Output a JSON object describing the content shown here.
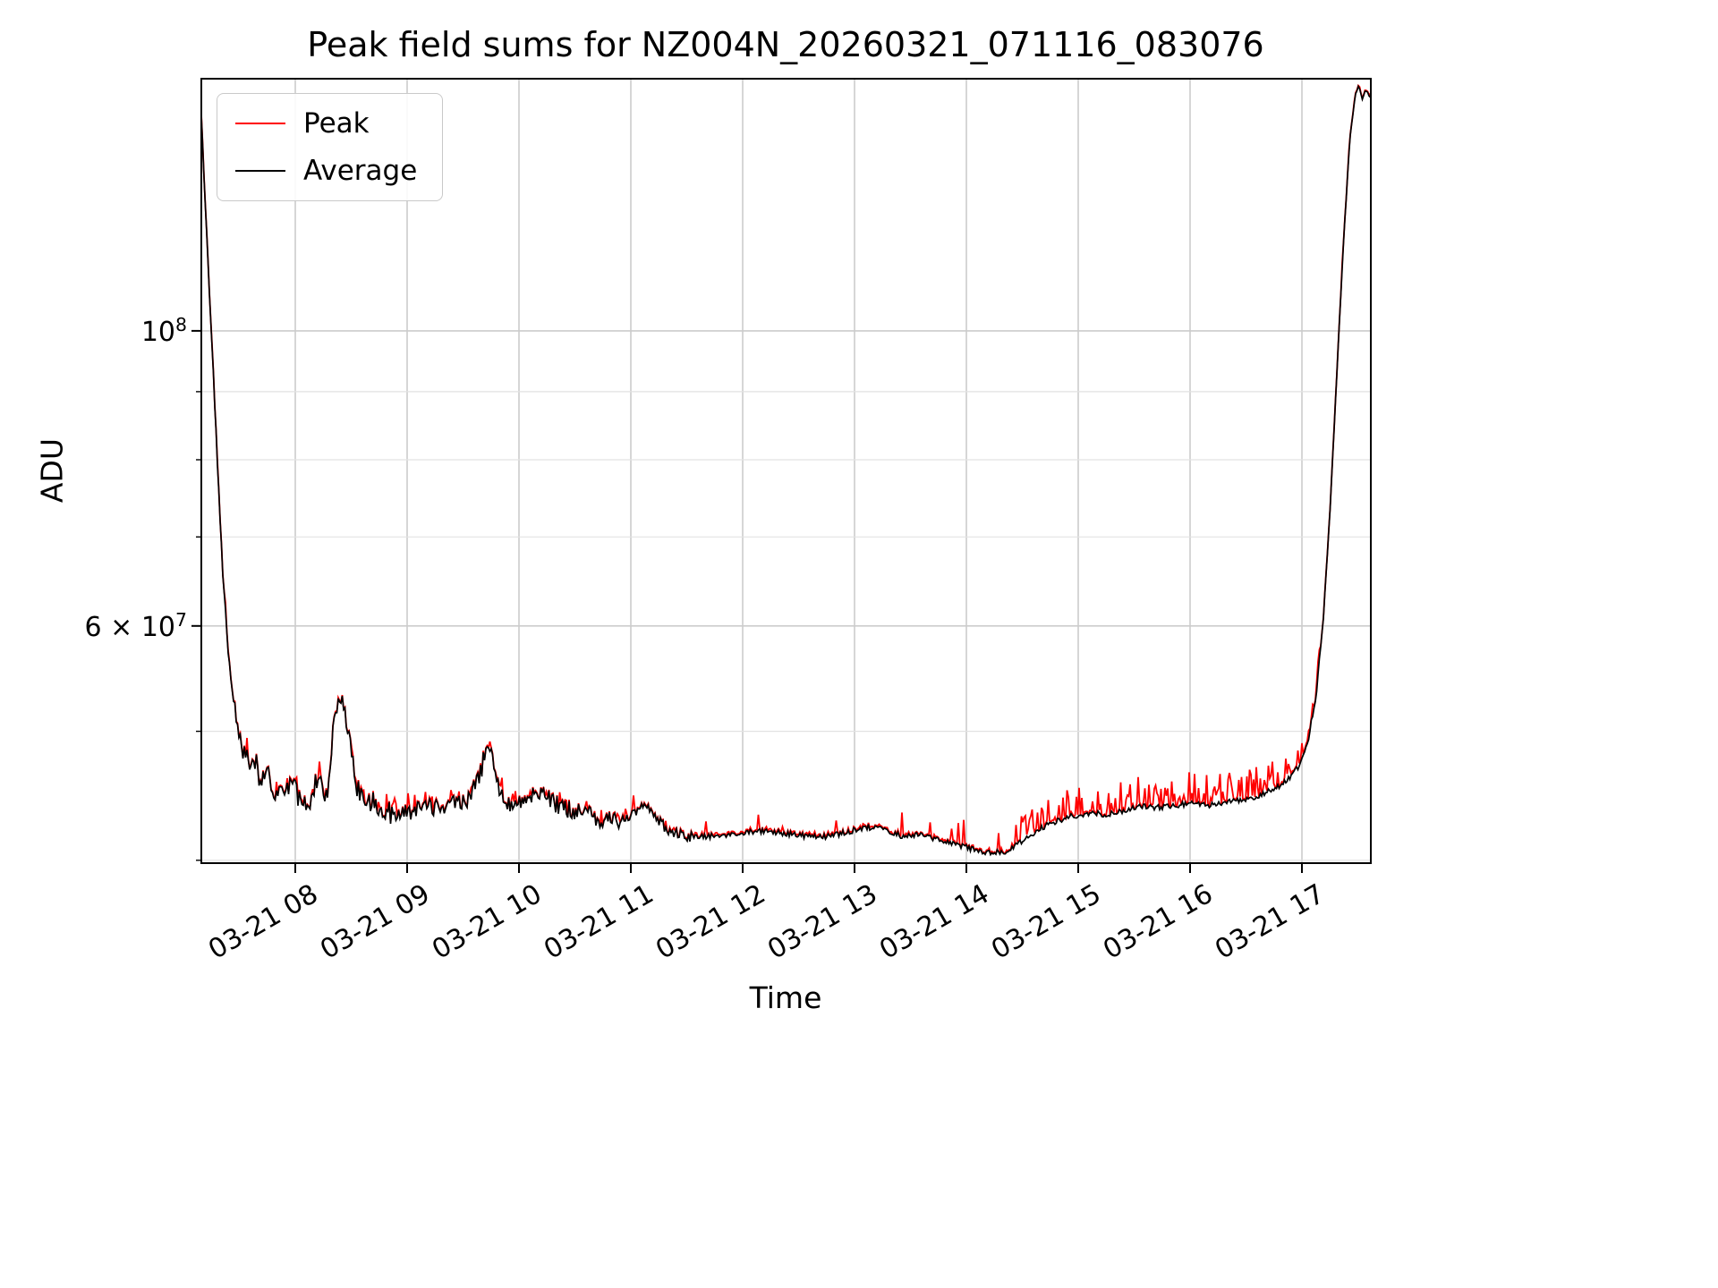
{
  "chart_data": {
    "type": "line",
    "title": "Peak field sums for NZ004N_20260321_071116_083076",
    "xlabel": "Time",
    "ylabel": "ADU",
    "x_range": [
      7.16,
      17.616
    ],
    "y_range": [
      39800000.0,
      154700000.0
    ],
    "y_scale": "log",
    "grid": true,
    "legend_position": "upper left",
    "x_ticks": [
      {
        "value": 8,
        "label": "03-21 08"
      },
      {
        "value": 9,
        "label": "03-21 09"
      },
      {
        "value": 10,
        "label": "03-21 10"
      },
      {
        "value": 11,
        "label": "03-21 11"
      },
      {
        "value": 12,
        "label": "03-21 12"
      },
      {
        "value": 13,
        "label": "03-21 13"
      },
      {
        "value": 14,
        "label": "03-21 14"
      },
      {
        "value": 15,
        "label": "03-21 15"
      },
      {
        "value": 16,
        "label": "03-21 16"
      },
      {
        "value": 17,
        "label": "03-21 17"
      }
    ],
    "y_ticks": [
      {
        "value": 100000000.0,
        "prefix": "",
        "base": "10",
        "exp": "8"
      },
      {
        "value": 60000000.0,
        "prefix": "6 × ",
        "base": "10",
        "exp": "7"
      }
    ],
    "y_minor_ticks": [
      40000000.0,
      50000000.0,
      70000000.0,
      80000000.0,
      90000000.0
    ],
    "series": [
      {
        "name": "Peak",
        "color": "#ff0000",
        "role": "peak"
      },
      {
        "name": "Average",
        "color": "#000000",
        "role": "average"
      }
    ],
    "average_backbone": [
      [
        7.16,
        145000000.0
      ],
      [
        7.2,
        122000000.0
      ],
      [
        7.25,
        100000000.0
      ],
      [
        7.3,
        81000000.0
      ],
      [
        7.35,
        66000000.0
      ],
      [
        7.4,
        57500000.0
      ],
      [
        7.46,
        51500000.0
      ],
      [
        7.52,
        48800000.0
      ],
      [
        7.58,
        47200000.0
      ],
      [
        7.63,
        48200000.0
      ],
      [
        7.68,
        46200000.0
      ],
      [
        7.74,
        46800000.0
      ],
      [
        7.8,
        45200000.0
      ],
      [
        7.88,
        44700000.0
      ],
      [
        7.96,
        45700000.0
      ],
      [
        8.04,
        44600000.0
      ],
      [
        8.12,
        44000000.0
      ],
      [
        8.2,
        46300000.0
      ],
      [
        8.28,
        44800000.0
      ],
      [
        8.35,
        50800000.0
      ],
      [
        8.41,
        52800000.0
      ],
      [
        8.47,
        50200000.0
      ],
      [
        8.54,
        45600000.0
      ],
      [
        8.62,
        44500000.0
      ],
      [
        8.72,
        44000000.0
      ],
      [
        8.85,
        43400000.0
      ],
      [
        9.0,
        43500000.0
      ],
      [
        9.2,
        43800000.0
      ],
      [
        9.4,
        44200000.0
      ],
      [
        9.55,
        44500000.0
      ],
      [
        9.65,
        46200000.0
      ],
      [
        9.72,
        49200000.0
      ],
      [
        9.8,
        46000000.0
      ],
      [
        9.88,
        44200000.0
      ],
      [
        9.96,
        43800000.0
      ],
      [
        10.06,
        44500000.0
      ],
      [
        10.16,
        45200000.0
      ],
      [
        10.26,
        44500000.0
      ],
      [
        10.4,
        43800000.0
      ],
      [
        10.6,
        43300000.0
      ],
      [
        10.8,
        42800000.0
      ],
      [
        11.0,
        43100000.0
      ],
      [
        11.12,
        44300000.0
      ],
      [
        11.22,
        43200000.0
      ],
      [
        11.35,
        42000000.0
      ],
      [
        11.5,
        41600000.0
      ],
      [
        11.7,
        41700000.0
      ],
      [
        11.95,
        41900000.0
      ],
      [
        12.2,
        42100000.0
      ],
      [
        12.45,
        41800000.0
      ],
      [
        12.7,
        41600000.0
      ],
      [
        12.95,
        42000000.0
      ],
      [
        13.1,
        42400000.0
      ],
      [
        13.3,
        42100000.0
      ],
      [
        13.45,
        41600000.0
      ],
      [
        13.6,
        41900000.0
      ],
      [
        13.75,
        41400000.0
      ],
      [
        13.9,
        41100000.0
      ],
      [
        14.05,
        40800000.0
      ],
      [
        14.2,
        40500000.0
      ],
      [
        14.35,
        40600000.0
      ],
      [
        14.5,
        41300000.0
      ],
      [
        14.65,
        42200000.0
      ],
      [
        14.8,
        42800000.0
      ],
      [
        14.95,
        43200000.0
      ],
      [
        15.1,
        43400000.0
      ],
      [
        15.25,
        43300000.0
      ],
      [
        15.4,
        43600000.0
      ],
      [
        15.55,
        43900000.0
      ],
      [
        15.7,
        43800000.0
      ],
      [
        15.85,
        44000000.0
      ],
      [
        16.0,
        44100000.0
      ],
      [
        16.15,
        44000000.0
      ],
      [
        16.3,
        44200000.0
      ],
      [
        16.45,
        44400000.0
      ],
      [
        16.6,
        44700000.0
      ],
      [
        16.75,
        45200000.0
      ],
      [
        16.88,
        46000000.0
      ],
      [
        16.98,
        47200000.0
      ],
      [
        17.06,
        49500000.0
      ],
      [
        17.13,
        53500000.0
      ],
      [
        17.19,
        60500000.0
      ],
      [
        17.25,
        73000000.0
      ],
      [
        17.31,
        92000000.0
      ],
      [
        17.37,
        116000000.0
      ],
      [
        17.43,
        140000000.0
      ],
      [
        17.48,
        151000000.0
      ],
      [
        17.51,
        153000000.0
      ],
      [
        17.54,
        149000000.0
      ],
      [
        17.57,
        152000000.0
      ],
      [
        17.6,
        150000000.0
      ]
    ],
    "noise_segments": [
      [
        7.16,
        7.45,
        0.006,
        0.012,
        0.15
      ],
      [
        7.45,
        8.9,
        0.02,
        0.03,
        0.22
      ],
      [
        8.9,
        10.9,
        0.016,
        0.03,
        0.18
      ],
      [
        10.9,
        11.55,
        0.01,
        0.03,
        0.12
      ],
      [
        11.55,
        14.45,
        0.005,
        0.05,
        0.05
      ],
      [
        14.45,
        15.15,
        0.005,
        0.05,
        0.3
      ],
      [
        15.15,
        16.6,
        0.005,
        0.055,
        0.42
      ],
      [
        16.6,
        17.16,
        0.005,
        0.05,
        0.45
      ],
      [
        17.16,
        17.62,
        0.002,
        0.01,
        0.1
      ]
    ],
    "noise_seed": 42,
    "samples_step_hours": 0.012
  }
}
